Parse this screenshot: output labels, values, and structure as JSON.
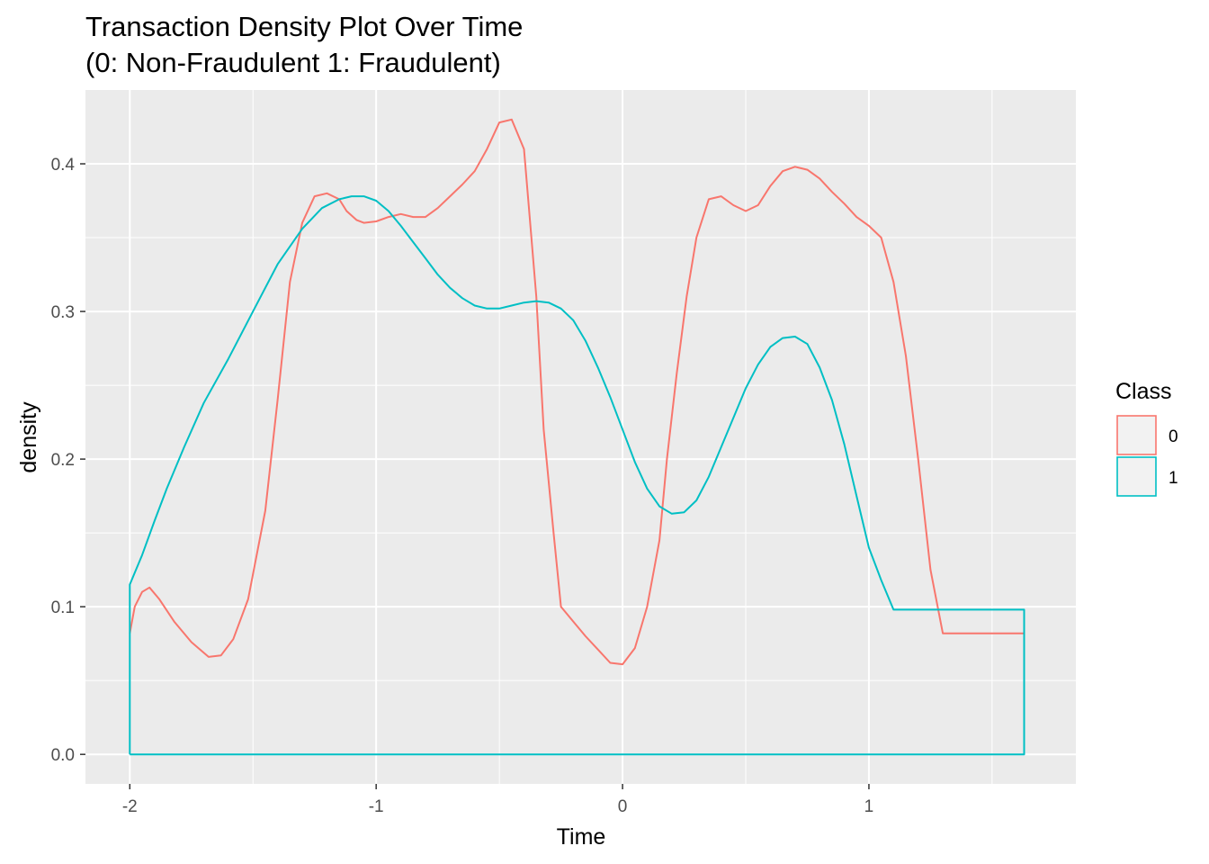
{
  "chart_data": {
    "type": "line",
    "title": "Transaction Density Plot Over Time",
    "subtitle": "(0: Non-Fraudulent   1: Fraudulent)",
    "xlabel": "Time",
    "ylabel": "density",
    "xlim": [
      -2.18,
      1.84
    ],
    "ylim": [
      -0.02,
      0.45
    ],
    "x_ticks": [
      -2,
      -1,
      0,
      1
    ],
    "x_tick_labels": [
      "-2",
      "-1",
      "0",
      "1"
    ],
    "y_ticks": [
      0.0,
      0.1,
      0.2,
      0.3,
      0.4
    ],
    "y_tick_labels": [
      "0.0",
      "0.1",
      "0.2",
      "0.3",
      "0.4"
    ],
    "x_minor": [
      -1.5,
      -0.5,
      0.5,
      1.5
    ],
    "y_minor": [
      0.05,
      0.15,
      0.25,
      0.35
    ],
    "grid": true,
    "background": "#ebebeb",
    "legend": {
      "title": "Class",
      "position": "right",
      "entries": [
        {
          "label": "0",
          "color": "#f8766d"
        },
        {
          "label": "1",
          "color": "#00bfc4"
        }
      ]
    },
    "series": [
      {
        "name": "0",
        "color": "#f8766d",
        "x": [
          -2.0,
          -1.98,
          -1.95,
          -1.92,
          -1.88,
          -1.82,
          -1.75,
          -1.68,
          -1.63,
          -1.58,
          -1.52,
          -1.45,
          -1.4,
          -1.35,
          -1.3,
          -1.25,
          -1.2,
          -1.15,
          -1.12,
          -1.08,
          -1.05,
          -1.0,
          -0.95,
          -0.9,
          -0.85,
          -0.8,
          -0.75,
          -0.7,
          -0.65,
          -0.6,
          -0.55,
          -0.5,
          -0.45,
          -0.4,
          -0.38,
          -0.35,
          -0.32,
          -0.28,
          -0.25,
          -0.2,
          -0.15,
          -0.1,
          -0.05,
          0.0,
          0.05,
          0.1,
          0.15,
          0.18,
          0.22,
          0.26,
          0.3,
          0.35,
          0.4,
          0.45,
          0.5,
          0.55,
          0.6,
          0.65,
          0.7,
          0.75,
          0.8,
          0.85,
          0.9,
          0.95,
          1.0,
          1.05,
          1.1,
          1.15,
          1.2,
          1.25,
          1.3,
          1.35,
          1.4,
          1.45,
          1.5,
          1.55,
          1.6,
          1.63,
          1.63
        ],
        "values": [
          0.082,
          0.1,
          0.11,
          0.113,
          0.105,
          0.09,
          0.076,
          0.066,
          0.067,
          0.078,
          0.105,
          0.165,
          0.24,
          0.32,
          0.36,
          0.378,
          0.38,
          0.376,
          0.368,
          0.362,
          0.36,
          0.361,
          0.364,
          0.366,
          0.364,
          0.364,
          0.37,
          0.378,
          0.386,
          0.395,
          0.41,
          0.428,
          0.43,
          0.41,
          0.37,
          0.31,
          0.22,
          0.15,
          0.1,
          0.09,
          0.08,
          0.071,
          0.062,
          0.061,
          0.072,
          0.1,
          0.145,
          0.2,
          0.258,
          0.31,
          0.35,
          0.376,
          0.378,
          0.372,
          0.368,
          0.372,
          0.385,
          0.395,
          0.398,
          0.396,
          0.39,
          0.381,
          0.373,
          0.364,
          0.358,
          0.35,
          0.32,
          0.27,
          0.2,
          0.125,
          0.082,
          0.082,
          0.082,
          0.082,
          0.082,
          0.082,
          0.082,
          0.082,
          0.082
        ]
      },
      {
        "name": "1",
        "color": "#00bfc4",
        "x": [
          -2.0,
          -2.0,
          -1.95,
          -1.9,
          -1.85,
          -1.78,
          -1.7,
          -1.6,
          -1.5,
          -1.4,
          -1.3,
          -1.22,
          -1.15,
          -1.1,
          -1.05,
          -1.0,
          -0.95,
          -0.9,
          -0.85,
          -0.8,
          -0.75,
          -0.7,
          -0.65,
          -0.6,
          -0.55,
          -0.5,
          -0.45,
          -0.4,
          -0.35,
          -0.3,
          -0.25,
          -0.2,
          -0.15,
          -0.1,
          -0.05,
          0.0,
          0.05,
          0.1,
          0.15,
          0.2,
          0.25,
          0.3,
          0.35,
          0.4,
          0.45,
          0.5,
          0.55,
          0.6,
          0.65,
          0.7,
          0.75,
          0.8,
          0.85,
          0.9,
          0.95,
          1.0,
          1.05,
          1.1,
          1.15,
          1.2,
          1.25,
          1.3,
          1.35,
          1.4,
          1.45,
          1.5,
          1.55,
          1.6,
          1.63,
          1.63,
          -2.0
        ],
        "values": [
          0.0,
          0.115,
          0.135,
          0.158,
          0.18,
          0.208,
          0.238,
          0.268,
          0.3,
          0.332,
          0.356,
          0.37,
          0.376,
          0.378,
          0.378,
          0.375,
          0.368,
          0.358,
          0.347,
          0.336,
          0.325,
          0.316,
          0.309,
          0.304,
          0.302,
          0.302,
          0.304,
          0.306,
          0.307,
          0.306,
          0.302,
          0.294,
          0.28,
          0.262,
          0.242,
          0.22,
          0.198,
          0.18,
          0.168,
          0.163,
          0.164,
          0.172,
          0.188,
          0.208,
          0.228,
          0.248,
          0.264,
          0.276,
          0.282,
          0.283,
          0.278,
          0.262,
          0.24,
          0.21,
          0.175,
          0.14,
          0.118,
          0.098,
          0.098,
          0.098,
          0.098,
          0.098,
          0.098,
          0.098,
          0.098,
          0.098,
          0.098,
          0.098,
          0.098,
          0.0,
          0.0
        ]
      }
    ]
  }
}
